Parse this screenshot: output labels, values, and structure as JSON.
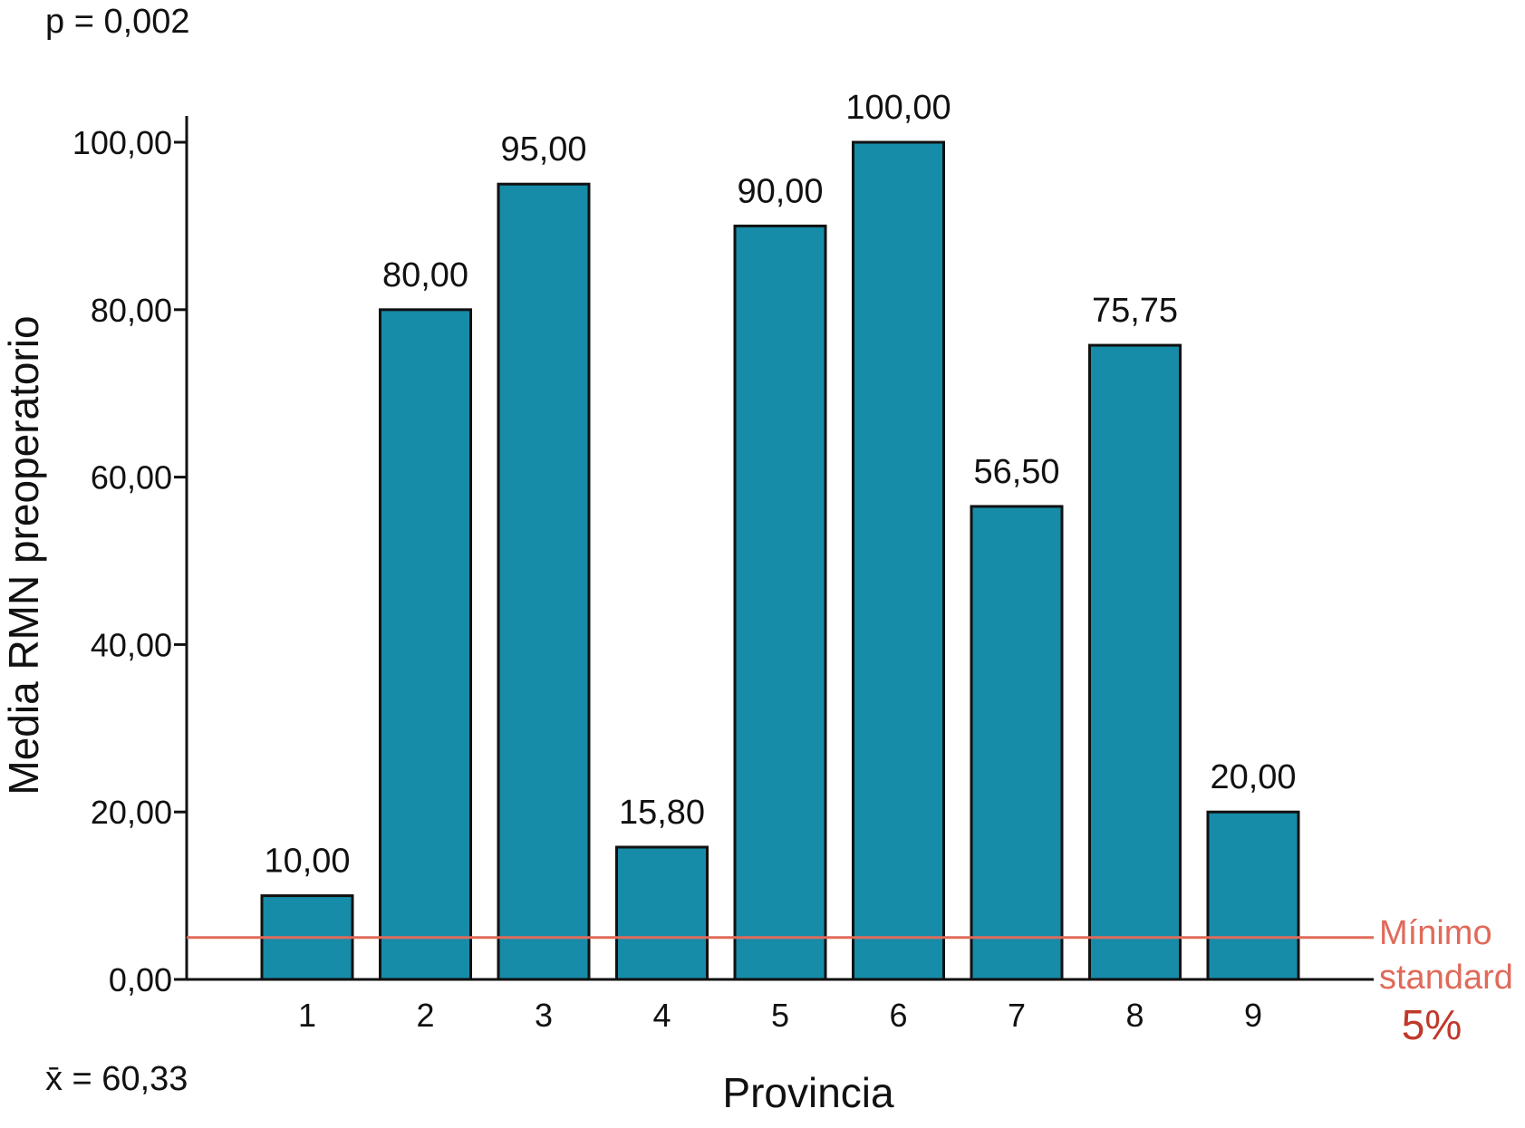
{
  "chart_data": {
    "type": "bar",
    "categories": [
      "1",
      "2",
      "3",
      "4",
      "5",
      "6",
      "7",
      "8",
      "9"
    ],
    "values": [
      10.0,
      80.0,
      95.0,
      15.8,
      90.0,
      100.0,
      56.5,
      75.75,
      20.0
    ],
    "value_labels": [
      "10,00",
      "80,00",
      "95,00",
      "15,80",
      "90,00",
      "100,00",
      "56,50",
      "75,75",
      "20,00"
    ],
    "xlabel": "Provincia",
    "ylabel": "Media RMN preoperatorio",
    "ylim": [
      0,
      100
    ],
    "yticks": [
      0,
      20,
      40,
      60,
      80,
      100
    ],
    "ytick_labels": [
      "0,00",
      "20,00",
      "40,00",
      "60,00",
      "80,00",
      "100,00"
    ],
    "grid": false,
    "bar_color": "#168ca8",
    "p_value_text": "p = 0,002",
    "mean_text": "x̄ = 60,33",
    "reference_line": {
      "value": 5,
      "color": "#e06a5a",
      "label_line1": "Mínimo",
      "label_line2": "standard",
      "label_pct": "5%",
      "pct_color": "#c0392b"
    }
  }
}
